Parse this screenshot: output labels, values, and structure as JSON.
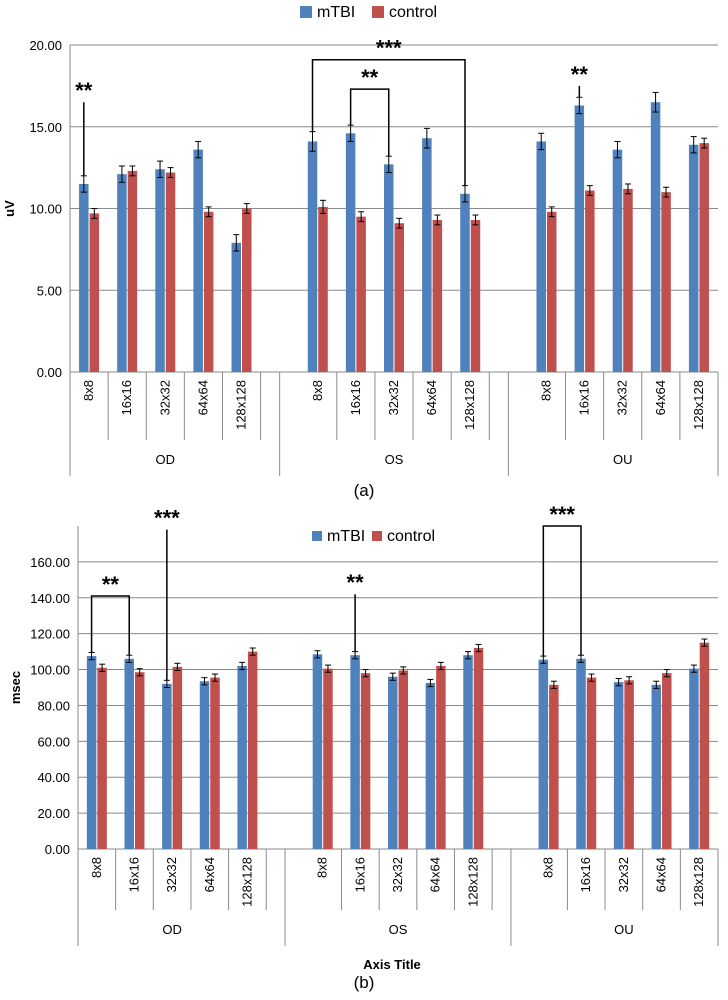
{
  "chart_data": [
    {
      "type": "bar",
      "panel": "(a)",
      "ylabel": "uV",
      "xlabel": "",
      "ylim": [
        0,
        20
      ],
      "yticks": [
        "0.00",
        "5.00",
        "10.00",
        "15.00",
        "20.00"
      ],
      "grid": true,
      "legend": "top-center",
      "groups": [
        "OD",
        "OS",
        "OU"
      ],
      "categories": [
        "8x8",
        "16x16",
        "32x32",
        "64x64",
        "128x128"
      ],
      "series": [
        {
          "name": "mTBI",
          "color": "#4f81bd",
          "values": [
            [
              11.5,
              12.1,
              12.4,
              13.6,
              7.9
            ],
            [
              14.1,
              14.6,
              12.7,
              14.3,
              10.9
            ],
            [
              14.1,
              16.3,
              13.6,
              16.5,
              13.9
            ]
          ],
          "errors": [
            [
              0.5,
              0.5,
              0.5,
              0.5,
              0.5
            ],
            [
              0.6,
              0.5,
              0.5,
              0.6,
              0.5
            ],
            [
              0.5,
              0.5,
              0.5,
              0.6,
              0.5
            ]
          ]
        },
        {
          "name": "control",
          "color": "#c0504d",
          "values": [
            [
              9.7,
              12.3,
              12.2,
              9.8,
              10.0
            ],
            [
              10.1,
              9.5,
              9.1,
              9.3,
              9.3
            ],
            [
              9.8,
              11.1,
              11.2,
              11.0,
              14.0
            ]
          ],
          "errors": [
            [
              0.3,
              0.3,
              0.3,
              0.3,
              0.3
            ],
            [
              0.4,
              0.3,
              0.3,
              0.3,
              0.3
            ],
            [
              0.3,
              0.3,
              0.3,
              0.3,
              0.3
            ]
          ]
        }
      ],
      "annotations": [
        {
          "text": "**",
          "kind": "line",
          "group": 0,
          "cat": 0,
          "top": 16.5
        },
        {
          "text": "**",
          "kind": "bracket",
          "group": 1,
          "from": 1,
          "to": 2,
          "top": 17.3
        },
        {
          "text": "***",
          "kind": "bracket",
          "group": 1,
          "from": 0,
          "to": 4,
          "top": 19.1
        },
        {
          "text": "**",
          "kind": "line",
          "group": 2,
          "cat": 1,
          "top": 17.5
        }
      ]
    },
    {
      "type": "bar",
      "panel": "(b)",
      "ylabel": "msec",
      "xlabel": "Axis Title",
      "ylim": [
        0,
        180
      ],
      "yticks": [
        "0.00",
        "20.00",
        "40.00",
        "60.00",
        "80.00",
        "100.00",
        "120.00",
        "140.00",
        "160.00"
      ],
      "grid": true,
      "legend": "top-center",
      "groups": [
        "OD",
        "OS",
        "OU"
      ],
      "categories": [
        "8x8",
        "16x16",
        "32x32",
        "64x64",
        "128x128"
      ],
      "series": [
        {
          "name": "mTBI",
          "color": "#4f81bd",
          "values": [
            [
              107.5,
              106.0,
              92.0,
              93.5,
              102.0
            ],
            [
              108.5,
              108.0,
              96.0,
              92.5,
              108.0
            ],
            [
              105.5,
              106.0,
              93.0,
              91.5,
              100.5
            ]
          ],
          "errors": [
            [
              2.0,
              2.0,
              2.0,
              2.0,
              2.0
            ],
            [
              2.0,
              2.0,
              2.0,
              2.0,
              2.0
            ],
            [
              2.0,
              2.0,
              2.0,
              2.0,
              2.0
            ]
          ]
        },
        {
          "name": "control",
          "color": "#c0504d",
          "values": [
            [
              101.0,
              98.5,
              101.5,
              95.5,
              110.0
            ],
            [
              100.5,
              98.0,
              99.5,
              102.0,
              112.0
            ],
            [
              91.5,
              95.5,
              94.0,
              98.0,
              115.0
            ]
          ],
          "errors": [
            [
              2.0,
              2.0,
              2.0,
              2.0,
              2.0
            ],
            [
              2.0,
              2.0,
              2.0,
              2.0,
              2.0
            ],
            [
              2.0,
              2.0,
              2.0,
              2.0,
              2.0
            ]
          ]
        }
      ],
      "annotations": [
        {
          "text": "**",
          "kind": "bracket",
          "group": 0,
          "from": 0,
          "to": 1,
          "top": 141
        },
        {
          "text": "***",
          "kind": "line",
          "group": 0,
          "cat": 2,
          "top": 178
        },
        {
          "text": "**",
          "kind": "line",
          "group": 1,
          "cat": 1,
          "top": 142
        },
        {
          "text": "***",
          "kind": "bracket",
          "group": 2,
          "from": 0,
          "to": 1,
          "top": 180
        }
      ]
    }
  ]
}
